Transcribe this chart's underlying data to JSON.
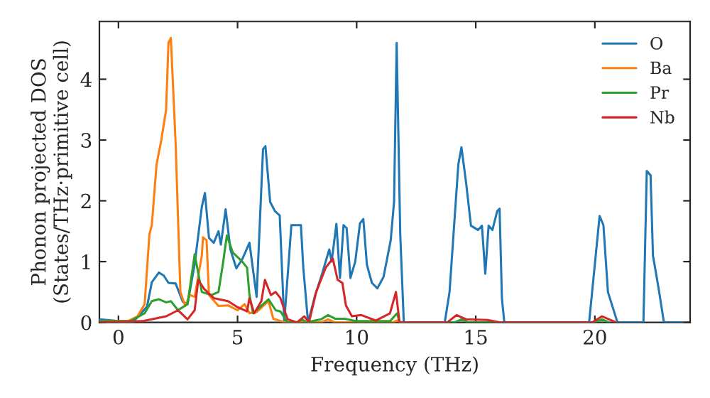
{
  "chart_data": {
    "type": "line",
    "xlabel": "Frequency (THz)",
    "ylabel": "Phonon projected DOS\n(States/THz·primitive cell)",
    "xlim": [
      -0.8,
      24
    ],
    "ylim": [
      0,
      4.95
    ],
    "xticks": [
      0,
      5,
      10,
      15,
      20
    ],
    "yticks": [
      0,
      1,
      2,
      3,
      4
    ],
    "grid": false,
    "legend": "top right",
    "marker": "none",
    "line_style": "solid",
    "series": [
      {
        "name": "O",
        "color": "#1f77b4",
        "x": [
          -0.8,
          0.6,
          1.2,
          1.4,
          1.7,
          1.9,
          2.1,
          2.4,
          2.7,
          2.9,
          3.2,
          3.5,
          3.63,
          3.8,
          4.0,
          4.2,
          4.3,
          4.5,
          4.7,
          4.95,
          5.2,
          5.5,
          5.8,
          6.07,
          6.17,
          6.37,
          6.57,
          6.77,
          6.96,
          7.26,
          7.66,
          7.76,
          7.96,
          8.26,
          8.55,
          8.85,
          8.95,
          9.15,
          9.3,
          9.45,
          9.58,
          9.74,
          9.94,
          10.14,
          10.28,
          10.43,
          10.64,
          10.87,
          11.13,
          11.43,
          11.57,
          11.68,
          11.83,
          11.98,
          13.7,
          13.9,
          14.1,
          14.27,
          14.4,
          14.6,
          14.8,
          15.1,
          15.26,
          15.4,
          15.54,
          15.7,
          15.9,
          16.0,
          16.1,
          16.2,
          19.76,
          20.2,
          20.36,
          20.55,
          20.95,
          22.04,
          22.18,
          22.34,
          22.44,
          22.68,
          22.9,
          23.7
        ],
        "values": [
          0.05,
          0.0,
          0.26,
          0.66,
          0.82,
          0.77,
          0.65,
          0.64,
          0.34,
          0.3,
          0.96,
          1.9,
          2.13,
          1.39,
          1.31,
          1.5,
          1.28,
          1.86,
          1.2,
          0.89,
          1.04,
          1.31,
          0.42,
          2.85,
          2.9,
          1.98,
          1.83,
          1.76,
          0.0,
          1.6,
          1.6,
          0.9,
          0.0,
          0.45,
          0.8,
          1.2,
          1.0,
          1.62,
          0.73,
          1.6,
          1.55,
          0.73,
          1.0,
          1.63,
          1.7,
          0.95,
          0.65,
          0.56,
          0.75,
          1.35,
          1.98,
          4.6,
          1.45,
          0.0,
          0.0,
          0.5,
          1.64,
          2.6,
          2.88,
          2.28,
          1.59,
          1.52,
          1.59,
          0.8,
          1.59,
          1.52,
          1.83,
          1.87,
          0.39,
          0.0,
          0.0,
          1.75,
          1.6,
          0.5,
          0.0,
          0.0,
          2.49,
          2.42,
          1.1,
          0.55,
          0.0,
          0.0
        ]
      },
      {
        "name": "Ba",
        "color": "#ff7f0e",
        "x": [
          -0.8,
          0.4,
          0.8,
          1.1,
          1.3,
          1.4,
          1.6,
          1.8,
          2.0,
          2.1,
          2.2,
          2.4,
          2.6,
          2.8,
          3.0,
          3.2,
          3.5,
          3.55,
          3.7,
          3.8,
          4.2,
          4.6,
          5.0,
          5.3,
          5.5,
          5.8,
          6.1,
          6.3,
          6.5,
          7.0,
          8.5,
          8.8,
          9.1,
          11.5,
          11.7,
          11.9
        ],
        "values": [
          0.02,
          0.02,
          0.1,
          0.3,
          1.45,
          1.6,
          2.6,
          3.0,
          3.5,
          4.6,
          4.68,
          2.95,
          0.5,
          0.27,
          0.45,
          0.42,
          1.1,
          1.4,
          1.35,
          0.45,
          0.27,
          0.28,
          0.2,
          0.3,
          0.15,
          0.17,
          0.28,
          0.35,
          0.06,
          0.0,
          0.0,
          0.05,
          0.0,
          0.0,
          0.03,
          0.0
        ]
      },
      {
        "name": "Pr",
        "color": "#2ca02c",
        "x": [
          -0.8,
          0.5,
          1.1,
          1.4,
          1.7,
          2.0,
          2.2,
          2.5,
          2.9,
          3.2,
          3.5,
          3.9,
          4.2,
          4.4,
          4.55,
          4.8,
          5.2,
          5.4,
          5.5,
          5.65,
          6.3,
          6.6,
          6.8,
          7.1,
          7.5,
          7.7,
          7.9,
          8.5,
          8.8,
          9.1,
          9.5,
          10.0,
          11.4,
          11.7,
          11.8,
          14.1,
          14.4,
          14.7,
          20.0,
          20.3,
          20.6
        ],
        "values": [
          0.02,
          0.02,
          0.15,
          0.35,
          0.38,
          0.33,
          0.35,
          0.2,
          0.3,
          1.12,
          0.5,
          0.45,
          0.5,
          1.0,
          1.43,
          1.15,
          1.0,
          0.9,
          0.45,
          0.15,
          0.38,
          0.2,
          0.18,
          0.0,
          0.0,
          0.05,
          0.0,
          0.05,
          0.12,
          0.06,
          0.06,
          0.02,
          0.02,
          0.15,
          0.0,
          0.0,
          0.05,
          0.0,
          0.0,
          0.05,
          0.0
        ]
      },
      {
        "name": "Nb",
        "color": "#d62728",
        "x": [
          -0.8,
          1.0,
          2.0,
          2.5,
          2.9,
          3.2,
          3.35,
          3.6,
          4.0,
          4.6,
          5.0,
          5.4,
          5.5,
          5.7,
          6.0,
          6.15,
          6.4,
          6.6,
          6.8,
          7.1,
          7.5,
          7.8,
          8.0,
          8.3,
          8.7,
          9.0,
          9.2,
          9.4,
          9.55,
          9.8,
          10.2,
          10.8,
          11.4,
          11.65,
          11.8,
          13.8,
          14.2,
          14.6,
          15.5,
          16.0,
          19.9,
          20.3,
          20.6,
          20.9
        ],
        "values": [
          0.0,
          0.02,
          0.1,
          0.2,
          0.05,
          0.2,
          0.7,
          0.55,
          0.4,
          0.35,
          0.25,
          0.18,
          0.4,
          0.15,
          0.35,
          0.7,
          0.45,
          0.5,
          0.4,
          0.05,
          0.0,
          0.1,
          0.0,
          0.5,
          0.9,
          1.05,
          0.7,
          0.65,
          0.28,
          0.1,
          0.12,
          0.03,
          0.15,
          0.5,
          0.0,
          0.0,
          0.12,
          0.05,
          0.04,
          0.0,
          0.0,
          0.1,
          0.05,
          0.0
        ]
      }
    ]
  }
}
